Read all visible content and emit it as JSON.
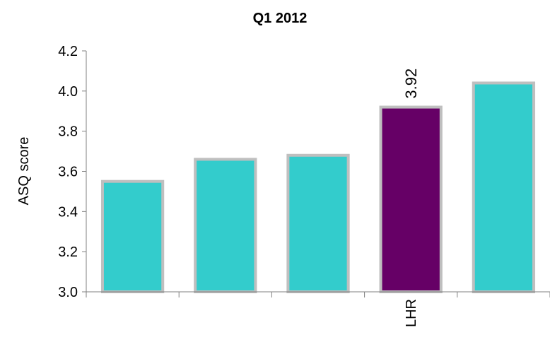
{
  "chart_data": {
    "type": "bar",
    "title": "Q1 2012",
    "ylabel": "ASQ score",
    "xlabel": "",
    "ylim": [
      3.0,
      4.2
    ],
    "yticks": [
      "3.0",
      "3.2",
      "3.4",
      "3.6",
      "3.8",
      "4.0",
      "4.2"
    ],
    "categories": [
      "",
      "",
      "",
      "LHR",
      ""
    ],
    "values": [
      3.55,
      3.66,
      3.68,
      3.92,
      4.04
    ],
    "data_labels": [
      "",
      "",
      "",
      "3.92",
      ""
    ],
    "grid": false,
    "legend": "none",
    "colors": {
      "default_bar": "#33CCCC",
      "highlight_bar": "#660066",
      "bar_border": "#BFBFBF",
      "axis": "#808080"
    }
  }
}
